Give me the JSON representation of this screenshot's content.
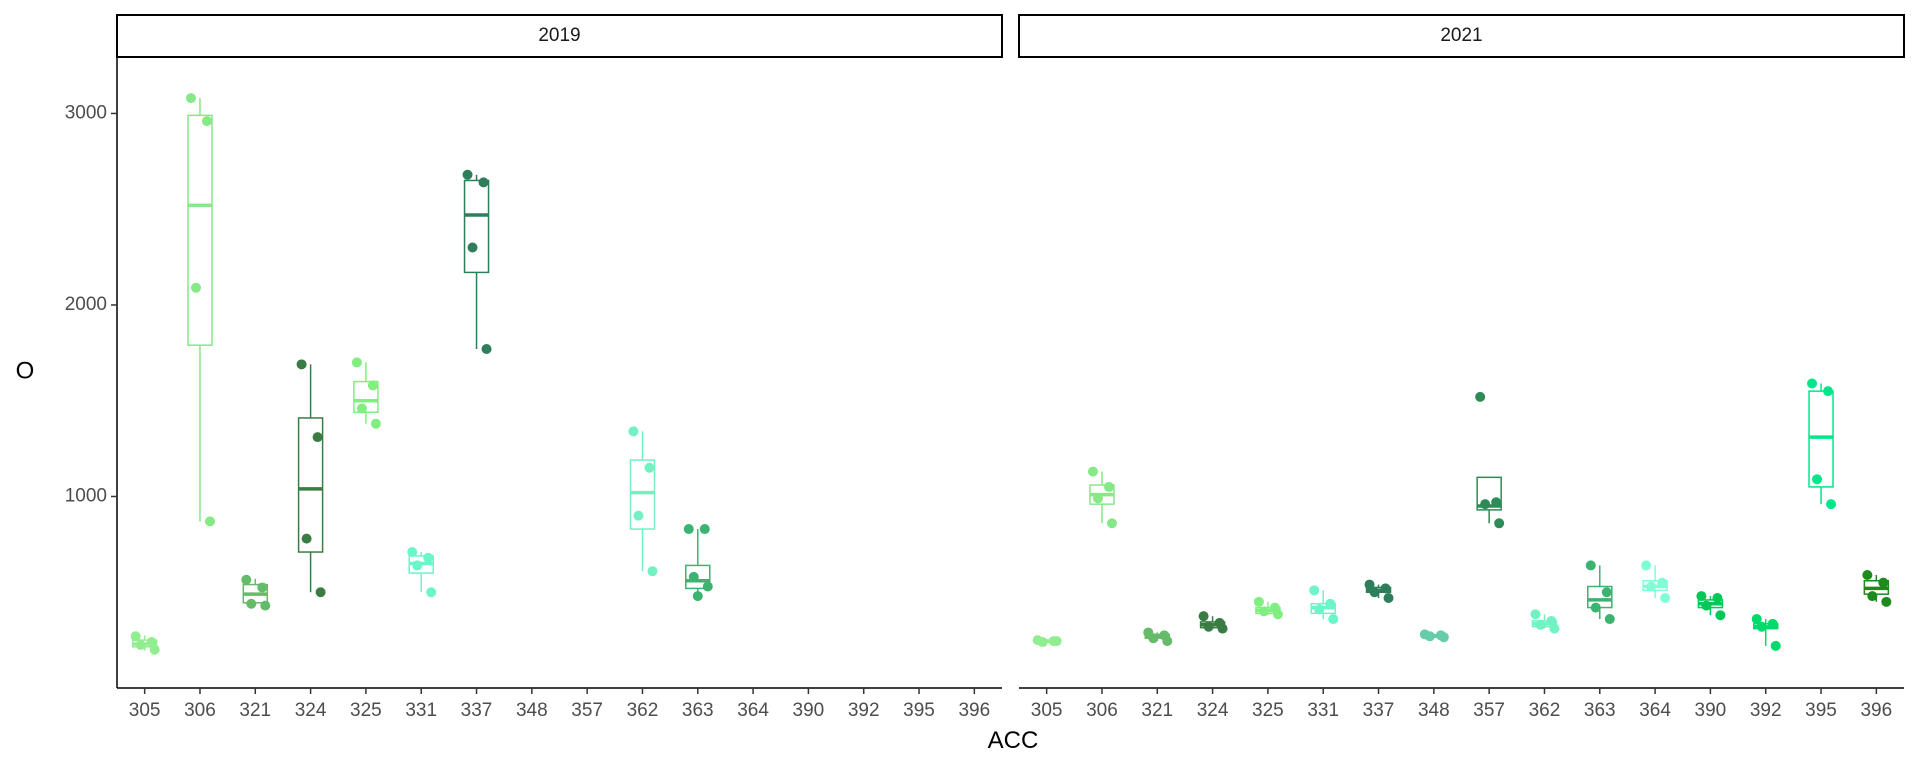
{
  "chart_data": {
    "type": "boxplot",
    "xlabel": "ACC",
    "ylabel": "O",
    "ylim": [
      0,
      3300
    ],
    "yticks": [
      1000,
      2000,
      3000
    ],
    "categories": [
      "305",
      "306",
      "321",
      "324",
      "325",
      "331",
      "337",
      "348",
      "357",
      "362",
      "363",
      "364",
      "390",
      "392",
      "395",
      "396"
    ],
    "colors": {
      "305": "#90ee90",
      "306": "#86e886",
      "321": "#66bb6a",
      "324": "#3a7d44",
      "325": "#80ef80",
      "331": "#6cf5c8",
      "337": "#2e7d5b",
      "348": "#66cdaa",
      "357": "#2e8b57",
      "362": "#72f2c2",
      "363": "#3cb371",
      "364": "#7fffd4",
      "390": "#00c957",
      "392": "#00d96b",
      "395": "#00e68a",
      "396": "#1d8a1d"
    },
    "panels": [
      {
        "label": "2019",
        "groups": [
          {
            "acc": "305",
            "q1": 215,
            "median": 230,
            "q3": 250,
            "whisker_low": 195,
            "whisker_high": 275,
            "points": [
              270,
              240,
              225,
              200
            ]
          },
          {
            "acc": "306",
            "q1": 1790,
            "median": 2520,
            "q3": 2990,
            "whisker_low": 870,
            "whisker_high": 3080,
            "points": [
              3080,
              2960,
              2090,
              870
            ]
          },
          {
            "acc": "321",
            "q1": 445,
            "median": 490,
            "q3": 540,
            "whisker_low": 430,
            "whisker_high": 570,
            "points": [
              565,
              525,
              440,
              430
            ]
          },
          {
            "acc": "324",
            "q1": 710,
            "median": 1040,
            "q3": 1410,
            "whisker_low": 500,
            "whisker_high": 1690,
            "points": [
              1690,
              1310,
              780,
              500
            ]
          },
          {
            "acc": "325",
            "q1": 1440,
            "median": 1500,
            "q3": 1600,
            "whisker_low": 1380,
            "whisker_high": 1700,
            "points": [
              1700,
              1580,
              1460,
              1380
            ]
          },
          {
            "acc": "331",
            "q1": 600,
            "median": 650,
            "q3": 690,
            "whisker_low": 500,
            "whisker_high": 710,
            "points": [
              710,
              680,
              640,
              500
            ]
          },
          {
            "acc": "337",
            "q1": 2170,
            "median": 2470,
            "q3": 2650,
            "whisker_low": 1770,
            "whisker_high": 2680,
            "points": [
              2680,
              2640,
              2300,
              1770
            ]
          },
          {
            "acc": "348"
          },
          {
            "acc": "357"
          },
          {
            "acc": "362",
            "q1": 830,
            "median": 1020,
            "q3": 1190,
            "whisker_low": 610,
            "whisker_high": 1340,
            "points": [
              1340,
              1150,
              900,
              610
            ]
          },
          {
            "acc": "363",
            "q1": 520,
            "median": 560,
            "q3": 640,
            "whisker_low": 480,
            "whisker_high": 830,
            "points": [
              830,
              830,
              580,
              530,
              480
            ]
          },
          {
            "acc": "364"
          },
          {
            "acc": "390"
          },
          {
            "acc": "392"
          },
          {
            "acc": "395"
          },
          {
            "acc": "396"
          }
        ]
      },
      {
        "label": "2021",
        "groups": [
          {
            "acc": "305",
            "q1": 240,
            "median": 245,
            "q3": 250,
            "whisker_low": 235,
            "whisker_high": 255,
            "points": [
              250,
              245,
              240,
              245
            ]
          },
          {
            "acc": "306",
            "q1": 960,
            "median": 1010,
            "q3": 1060,
            "whisker_low": 860,
            "whisker_high": 1130,
            "points": [
              1130,
              1050,
              990,
              860
            ]
          },
          {
            "acc": "321",
            "q1": 260,
            "median": 270,
            "q3": 280,
            "whisker_low": 245,
            "whisker_high": 290,
            "points": [
              290,
              275,
              260,
              245
            ]
          },
          {
            "acc": "324",
            "q1": 315,
            "median": 330,
            "q3": 345,
            "whisker_low": 310,
            "whisker_high": 375,
            "points": [
              375,
              340,
              320,
              310
            ]
          },
          {
            "acc": "325",
            "q1": 390,
            "median": 405,
            "q3": 420,
            "whisker_low": 380,
            "whisker_high": 450,
            "points": [
              450,
              420,
              400,
              385
            ]
          },
          {
            "acc": "331",
            "q1": 390,
            "median": 420,
            "q3": 440,
            "whisker_low": 360,
            "whisker_high": 510,
            "points": [
              510,
              440,
              410,
              360
            ]
          },
          {
            "acc": "337",
            "q1": 500,
            "median": 510,
            "q3": 525,
            "whisker_low": 470,
            "whisker_high": 540,
            "points": [
              540,
              520,
              500,
              470
            ]
          },
          {
            "acc": "348",
            "q1": 265,
            "median": 270,
            "q3": 278,
            "whisker_low": 260,
            "whisker_high": 285,
            "points": [
              280,
              275,
              270,
              265
            ]
          },
          {
            "acc": "357",
            "q1": 930,
            "median": 950,
            "q3": 1100,
            "whisker_low": 860,
            "whisker_high": 1100,
            "points": [
              1520,
              970,
              960,
              860
            ]
          },
          {
            "acc": "362",
            "q1": 320,
            "median": 335,
            "q3": 350,
            "whisker_low": 310,
            "whisker_high": 385,
            "points": [
              385,
              350,
              330,
              310
            ]
          },
          {
            "acc": "363",
            "q1": 420,
            "median": 460,
            "q3": 530,
            "whisker_low": 360,
            "whisker_high": 640,
            "points": [
              640,
              500,
              420,
              360
            ]
          },
          {
            "acc": "364",
            "q1": 510,
            "median": 530,
            "q3": 560,
            "whisker_low": 470,
            "whisker_high": 640,
            "points": [
              640,
              550,
              530,
              470
            ]
          },
          {
            "acc": "390",
            "q1": 420,
            "median": 440,
            "q3": 460,
            "whisker_low": 380,
            "whisker_high": 480,
            "points": [
              480,
              470,
              430,
              380
            ]
          },
          {
            "acc": "392",
            "q1": 310,
            "median": 320,
            "q3": 335,
            "whisker_low": 220,
            "whisker_high": 360,
            "points": [
              360,
              335,
              320,
              220
            ]
          },
          {
            "acc": "395",
            "q1": 1050,
            "median": 1310,
            "q3": 1550,
            "whisker_low": 960,
            "whisker_high": 1590,
            "points": [
              1590,
              1550,
              1090,
              960
            ]
          },
          {
            "acc": "396",
            "q1": 490,
            "median": 520,
            "q3": 560,
            "whisker_low": 450,
            "whisker_high": 590,
            "points": [
              590,
              550,
              480,
              450
            ]
          }
        ]
      }
    ]
  }
}
